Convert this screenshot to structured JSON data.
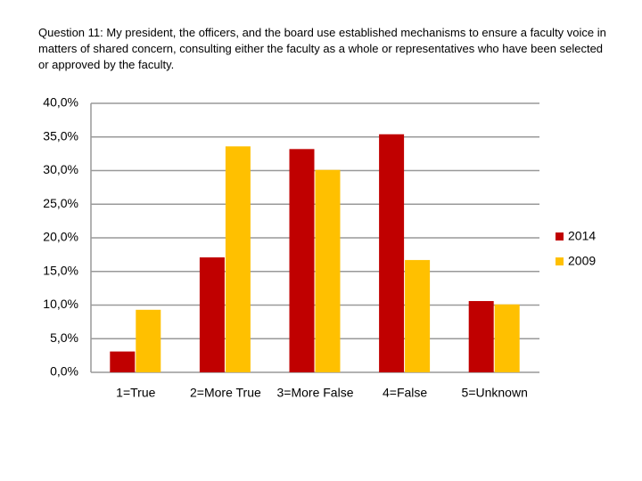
{
  "chart_data": {
    "type": "bar",
    "title": "Question 11: My president, the officers, and the board use established mechanisms to ensure a faculty voice in matters of shared concern, consulting either the faculty as a whole or representatives who have been selected or approved by the faculty.",
    "categories": [
      "1=True",
      "2=More True",
      "3=More False",
      "4=False",
      "5=Unknown"
    ],
    "series": [
      {
        "name": "2014",
        "color": "#c00000",
        "values": [
          3.1,
          17.1,
          33.2,
          35.4,
          10.6
        ]
      },
      {
        "name": "2009",
        "color": "#ffc000",
        "values": [
          9.3,
          33.6,
          30.1,
          16.7,
          10.1
        ]
      }
    ],
    "ylim": [
      0,
      40
    ],
    "yticks": [
      {
        "value": 0,
        "label": "0,0%"
      },
      {
        "value": 5,
        "label": "5,0%"
      },
      {
        "value": 10,
        "label": "10,0%"
      },
      {
        "value": 15,
        "label": "15,0%"
      },
      {
        "value": 20,
        "label": "20,0%"
      },
      {
        "value": 25,
        "label": "25,0%"
      },
      {
        "value": 30,
        "label": "30,0%"
      },
      {
        "value": 35,
        "label": "35,0%"
      },
      {
        "value": 40,
        "label": "40,0%"
      }
    ],
    "grid": true,
    "legend": "right"
  }
}
